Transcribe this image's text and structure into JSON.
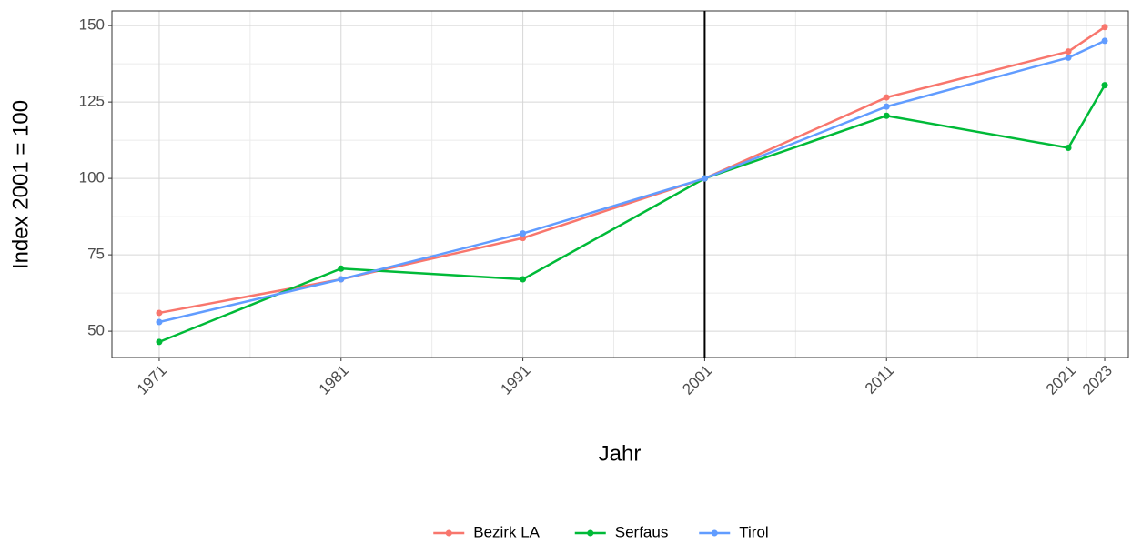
{
  "chart_data": {
    "type": "line",
    "x": [
      1971,
      1981,
      1991,
      2001,
      2011,
      2021,
      2023
    ],
    "series": [
      {
        "name": "Bezirk LA",
        "color": "#F8766D",
        "values": [
          56,
          67,
          80.5,
          100,
          126.5,
          141.5,
          149.5
        ]
      },
      {
        "name": "Serfaus",
        "color": "#00BA38",
        "values": [
          46.5,
          70.5,
          67,
          100,
          120.5,
          110,
          130.5
        ]
      },
      {
        "name": "Tirol",
        "color": "#619CFF",
        "values": [
          53,
          67,
          82,
          100,
          123.5,
          139.5,
          145
        ]
      }
    ],
    "xlabel": "Jahr",
    "ylabel": "Index 2001 = 100",
    "xlim": [
      1968.4,
      2024.3
    ],
    "ylim": [
      41.4,
      154.8
    ],
    "xticks": [
      1971,
      1981,
      1991,
      2001,
      2011,
      2021,
      2023
    ],
    "yticks": [
      50,
      75,
      100,
      125,
      150
    ],
    "x_minor_ticks": [
      1976,
      1986,
      1996,
      2006,
      2016,
      2022
    ],
    "y_minor_ticks": [
      62.5,
      87.5,
      112.5,
      137.5
    ],
    "vline": 2001,
    "grid": true,
    "legend": "bottom"
  }
}
